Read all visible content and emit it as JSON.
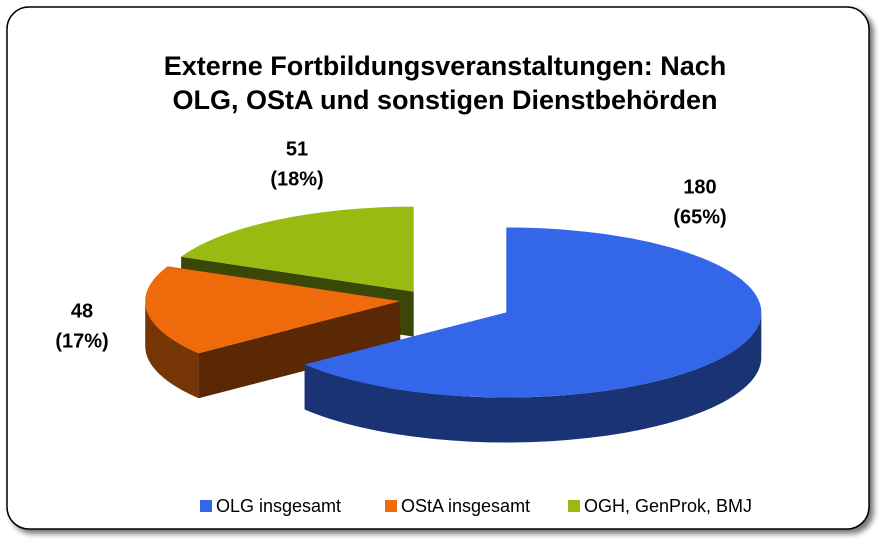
{
  "chart_data": {
    "type": "pie",
    "title": [
      "Externe Fortbildungsveranstaltungen:  Nach",
      "OLG, OStA und sonstigen Dienstbehörden"
    ],
    "categories": [
      "OLG insgesamt",
      "OStA insgesamt",
      "OGH, GenProk, BMJ"
    ],
    "values": [
      180,
      48,
      51
    ],
    "percent_labels": [
      "(65%)",
      "(17%)",
      "(18%)"
    ],
    "colors": [
      "#3366e8",
      "#ee6a0a",
      "#99bb11"
    ],
    "legend": "bottom"
  }
}
